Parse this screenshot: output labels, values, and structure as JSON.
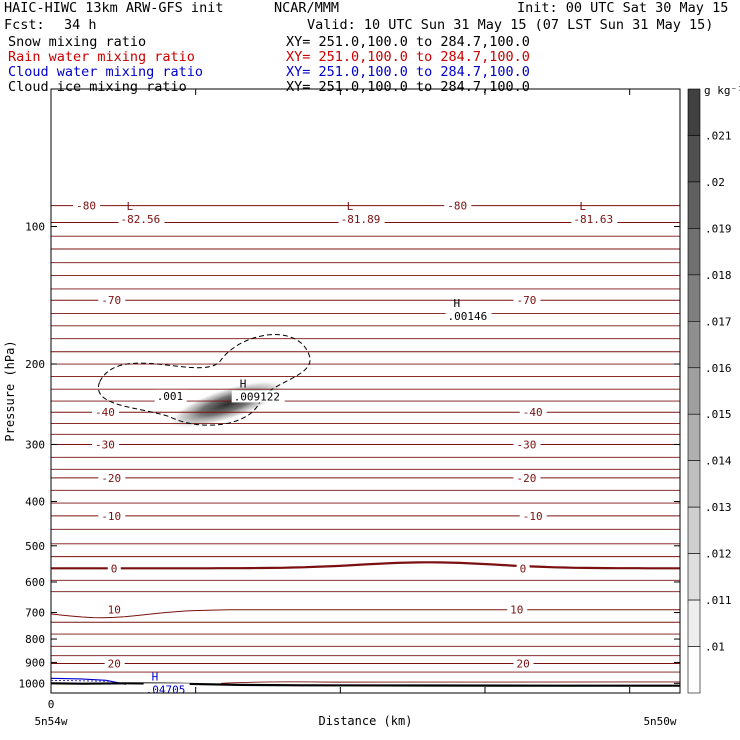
{
  "header": {
    "title": "HAIC-HIWC 13km ARW-GFS init",
    "org": "NCAR/MMM",
    "init": "Init: 00 UTC Sat 30 May 15",
    "fcst_label": "Fcst:",
    "fcst_value": "34 h",
    "valid": "Valid: 10 UTC Sun 31 May 15 (07 LST Sun 31 May 15)"
  },
  "colors": {
    "snow": "#000000",
    "rain": "#cc0000",
    "cloud_water": "#0000cc",
    "cloud_ice": "#000000",
    "temperature": "#7a1010"
  },
  "chart_data": {
    "type": "heatmap",
    "fields": [
      {
        "name": "Snow mixing ratio",
        "xy_label": "XY= 251.0,100.0 to 284.7,100.0",
        "color": "#000000",
        "style": "shaded"
      },
      {
        "name": "Rain water mixing ratio",
        "xy_label": "XY= 251.0,100.0 to 284.7,100.0",
        "color": "#cc0000",
        "style": "contour"
      },
      {
        "name": "Cloud water mixing ratio",
        "xy_label": "XY= 251.0,100.0 to 284.7,100.0",
        "color": "#0000cc",
        "style": "contour"
      },
      {
        "name": "Cloud ice mixing ratio",
        "xy_label": "XY= 251.0,100.0 to 284.7,100.0",
        "color": "#000000",
        "style": "dashed-contour"
      }
    ],
    "xlabel": "Distance (km)",
    "ylabel": "Pressure (hPa)",
    "y_log": true,
    "ylim": [
      1050,
      50
    ],
    "yticks": [
      100,
      200,
      300,
      400,
      500,
      600,
      700,
      800,
      900,
      1000
    ],
    "xlim": [
      0,
      1
    ],
    "x_start_label": "0",
    "x_left_label": "5n54w",
    "x_right_label": "5n50w",
    "colorbar": {
      "unit": "g kg⁻¹",
      "labels": [
        ".021",
        ".02",
        ".019",
        ".018",
        ".017",
        ".016",
        ".015",
        ".014",
        ".013",
        ".012",
        ".011",
        ".01"
      ]
    },
    "isotherms": [
      {
        "value": -80,
        "p": 90,
        "labels": [
          {
            "text": "-80",
            "x": 0.04
          },
          {
            "text": "-80",
            "x": 0.63
          }
        ]
      },
      {
        "value": -70,
        "p": 145,
        "labels": [
          {
            "text": "-70",
            "x": 0.08
          },
          {
            "text": "-70",
            "x": 0.74
          }
        ]
      },
      {
        "value": -40,
        "p": 255,
        "labels": [
          {
            "text": "-40",
            "x": 0.07
          },
          {
            "text": "-40",
            "x": 0.75
          }
        ]
      },
      {
        "value": -30,
        "p": 300,
        "labels": [
          {
            "text": "-30",
            "x": 0.07
          },
          {
            "text": "-30",
            "x": 0.74
          }
        ]
      },
      {
        "value": -20,
        "p": 355,
        "labels": [
          {
            "text": "-20",
            "x": 0.08
          },
          {
            "text": "-20",
            "x": 0.74
          }
        ]
      },
      {
        "value": -10,
        "p": 430,
        "labels": [
          {
            "text": "-10",
            "x": 0.08
          },
          {
            "text": "-10",
            "x": 0.75
          }
        ]
      },
      {
        "value": 0,
        "p": 560,
        "labels": [
          {
            "text": "0",
            "x": 0.095
          },
          {
            "text": "0",
            "x": 0.745
          }
        ]
      },
      {
        "value": 10,
        "p": 690,
        "labels": [
          {
            "text": "10",
            "x": 0.09
          },
          {
            "text": "10",
            "x": 0.73
          }
        ]
      },
      {
        "value": 20,
        "p": 905,
        "labels": [
          {
            "text": "20",
            "x": 0.09
          },
          {
            "text": "20",
            "x": 0.74
          }
        ]
      }
    ],
    "extrema": [
      {
        "kind": "L",
        "value": "-82.56",
        "x": 0.12,
        "p": 92,
        "color": "#7a1010"
      },
      {
        "kind": "L",
        "value": "-81.89",
        "x": 0.47,
        "p": 92,
        "color": "#7a1010"
      },
      {
        "kind": "L",
        "value": "-81.63",
        "x": 0.84,
        "p": 92,
        "color": "#7a1010"
      },
      {
        "kind": "H",
        "value": ".00146",
        "x": 0.64,
        "p": 150,
        "color": "#000000"
      },
      {
        "kind": "H",
        "value": ".009122",
        "x": 0.3,
        "p": 225,
        "color": "#000000"
      },
      {
        "kind": "H",
        "value": ".04705",
        "x": 0.16,
        "p": 985,
        "color": "#0000cc"
      }
    ],
    "ice_contour_label": ".001",
    "snow_peak": {
      "x": 0.28,
      "p": 245,
      "value": 0.021
    }
  }
}
